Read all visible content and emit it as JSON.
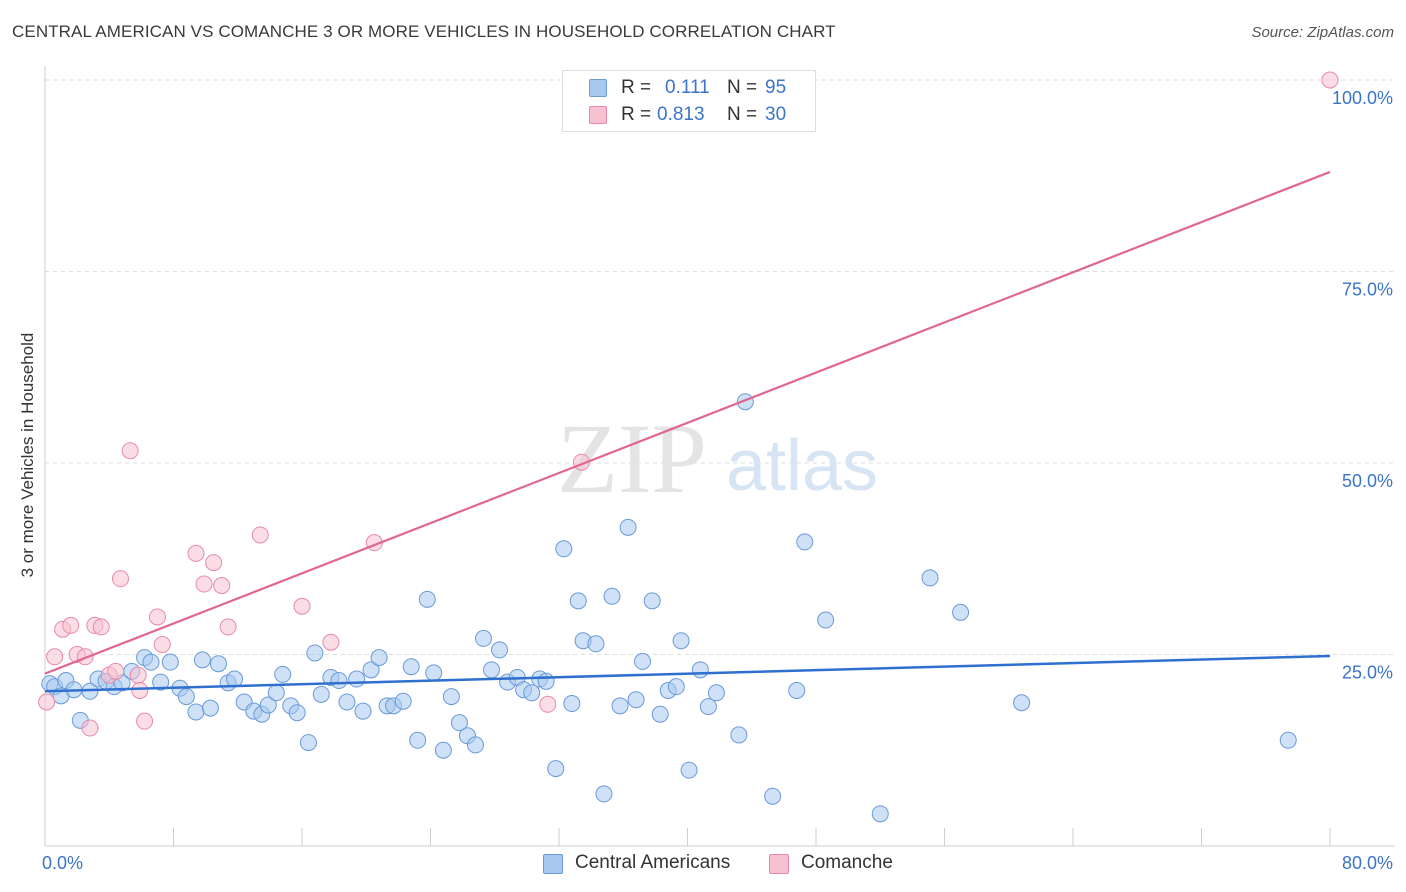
{
  "title": "CENTRAL AMERICAN VS COMANCHE 3 OR MORE VEHICLES IN HOUSEHOLD CORRELATION CHART",
  "source": "Source: ZipAtlas.com",
  "watermark": {
    "zip": "ZIP",
    "atlas": "atlas"
  },
  "legend": {
    "rows": [
      {
        "r_label": "R =",
        "r_value": "0.111",
        "n_label": "N =",
        "n_value": "95"
      },
      {
        "r_label": "R =",
        "r_value": "0.813",
        "n_label": "N =",
        "n_value": "30"
      }
    ]
  },
  "colors": {
    "central_fill": "#a8c8f0",
    "central_stroke": "#6a9ad8",
    "central_line": "#2e6fcf",
    "comanche_fill": "#f7c1d2",
    "comanche_stroke": "#e88aa8",
    "comanche_line": "#e0668f",
    "axis_label": "#3b74c8"
  },
  "chart_data": {
    "type": "scatter",
    "title": "CENTRAL AMERICAN VS COMANCHE 3 OR MORE VEHICLES IN HOUSEHOLD CORRELATION CHART",
    "xlabel": "",
    "ylabel": "3 or more Vehicles in Household",
    "xlim": [
      0,
      80
    ],
    "ylim": [
      0,
      100
    ],
    "x_tick_labels": [
      "0.0%",
      "80.0%"
    ],
    "y_ticks": [
      25,
      50,
      75,
      100
    ],
    "y_tick_labels": [
      "25.0%",
      "50.0%",
      "75.0%",
      "100.0%"
    ],
    "series": [
      {
        "name": "Central Americans",
        "R": 0.111,
        "N": 95,
        "trend": {
          "x": [
            0,
            80
          ],
          "y": [
            20.2,
            24.8
          ]
        },
        "points": [
          [
            0.3,
            21.2
          ],
          [
            0.6,
            20.8
          ],
          [
            1.0,
            19.6
          ],
          [
            1.3,
            21.6
          ],
          [
            1.8,
            20.4
          ],
          [
            2.2,
            16.4
          ],
          [
            2.8,
            20.2
          ],
          [
            3.3,
            21.8
          ],
          [
            3.8,
            21.5
          ],
          [
            4.3,
            20.8
          ],
          [
            4.8,
            21.3
          ],
          [
            5.4,
            22.8
          ],
          [
            6.2,
            24.6
          ],
          [
            6.6,
            24.0
          ],
          [
            7.2,
            21.4
          ],
          [
            7.8,
            24.0
          ],
          [
            8.4,
            20.6
          ],
          [
            8.8,
            19.5
          ],
          [
            9.4,
            17.5
          ],
          [
            9.8,
            24.3
          ],
          [
            10.3,
            18.0
          ],
          [
            10.8,
            23.8
          ],
          [
            11.4,
            21.3
          ],
          [
            11.8,
            21.8
          ],
          [
            12.4,
            18.8
          ],
          [
            13.0,
            17.6
          ],
          [
            13.5,
            17.2
          ],
          [
            13.9,
            18.4
          ],
          [
            14.4,
            20.0
          ],
          [
            14.8,
            22.4
          ],
          [
            15.3,
            18.3
          ],
          [
            15.7,
            17.4
          ],
          [
            16.4,
            13.5
          ],
          [
            16.8,
            25.2
          ],
          [
            17.2,
            19.8
          ],
          [
            17.8,
            22.0
          ],
          [
            18.3,
            21.6
          ],
          [
            18.8,
            18.8
          ],
          [
            19.4,
            21.8
          ],
          [
            19.8,
            17.6
          ],
          [
            20.3,
            23.0
          ],
          [
            20.8,
            24.6
          ],
          [
            21.3,
            18.3
          ],
          [
            21.7,
            18.3
          ],
          [
            22.3,
            18.9
          ],
          [
            22.8,
            23.4
          ],
          [
            23.2,
            13.8
          ],
          [
            23.8,
            32.2
          ],
          [
            24.2,
            22.6
          ],
          [
            24.8,
            12.5
          ],
          [
            25.3,
            19.5
          ],
          [
            25.8,
            16.1
          ],
          [
            26.3,
            14.4
          ],
          [
            26.8,
            13.2
          ],
          [
            27.3,
            27.1
          ],
          [
            27.8,
            23.0
          ],
          [
            28.3,
            25.6
          ],
          [
            28.8,
            21.4
          ],
          [
            29.4,
            22.0
          ],
          [
            29.8,
            20.4
          ],
          [
            30.3,
            20.0
          ],
          [
            30.8,
            21.8
          ],
          [
            31.2,
            21.5
          ],
          [
            31.8,
            10.1
          ],
          [
            32.3,
            38.8
          ],
          [
            32.8,
            18.6
          ],
          [
            33.2,
            32.0
          ],
          [
            33.5,
            26.8
          ],
          [
            34.3,
            26.4
          ],
          [
            34.8,
            6.8
          ],
          [
            35.3,
            32.6
          ],
          [
            35.8,
            18.3
          ],
          [
            36.3,
            41.6
          ],
          [
            36.8,
            19.1
          ],
          [
            37.2,
            24.1
          ],
          [
            37.8,
            32.0
          ],
          [
            38.3,
            17.2
          ],
          [
            38.8,
            20.3
          ],
          [
            39.3,
            20.8
          ],
          [
            39.6,
            26.8
          ],
          [
            40.1,
            9.9
          ],
          [
            40.8,
            23.0
          ],
          [
            41.3,
            18.2
          ],
          [
            41.8,
            20.0
          ],
          [
            43.2,
            14.5
          ],
          [
            43.6,
            58.0
          ],
          [
            45.3,
            6.5
          ],
          [
            46.8,
            20.3
          ],
          [
            47.3,
            39.7
          ],
          [
            48.6,
            29.5
          ],
          [
            52.0,
            4.2
          ],
          [
            55.1,
            35.0
          ],
          [
            57.0,
            30.5
          ],
          [
            60.8,
            18.7
          ],
          [
            77.4,
            13.8
          ]
        ]
      },
      {
        "name": "Comanche",
        "R": 0.813,
        "N": 30,
        "trend": {
          "x": [
            0,
            80
          ],
          "y": [
            22.5,
            88.0
          ]
        },
        "points": [
          [
            0.1,
            18.8
          ],
          [
            0.6,
            24.7
          ],
          [
            1.1,
            28.3
          ],
          [
            1.6,
            28.8
          ],
          [
            2.0,
            25.0
          ],
          [
            2.5,
            24.7
          ],
          [
            2.8,
            15.4
          ],
          [
            3.1,
            28.8
          ],
          [
            3.5,
            28.6
          ],
          [
            4.0,
            22.3
          ],
          [
            4.4,
            22.8
          ],
          [
            4.7,
            34.9
          ],
          [
            5.3,
            51.6
          ],
          [
            5.8,
            22.3
          ],
          [
            5.9,
            20.3
          ],
          [
            6.2,
            16.3
          ],
          [
            7.0,
            29.9
          ],
          [
            7.3,
            26.3
          ],
          [
            9.4,
            38.2
          ],
          [
            9.9,
            34.2
          ],
          [
            10.5,
            37.0
          ],
          [
            11.0,
            34.0
          ],
          [
            11.4,
            28.6
          ],
          [
            13.4,
            40.6
          ],
          [
            16.0,
            31.3
          ],
          [
            17.8,
            26.6
          ],
          [
            20.5,
            39.6
          ],
          [
            31.3,
            18.5
          ],
          [
            33.4,
            50.1
          ],
          [
            80.0,
            100.0
          ]
        ]
      }
    ]
  },
  "bottom_legend": [
    {
      "label": "Central Americans"
    },
    {
      "label": "Comanche"
    }
  ]
}
